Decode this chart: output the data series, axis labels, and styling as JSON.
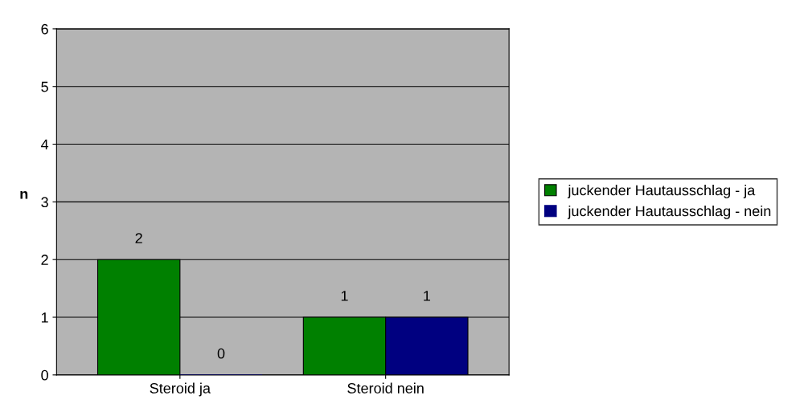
{
  "chart_data": {
    "type": "bar",
    "ylabel": "n",
    "categories": [
      "Steroid ja",
      "Steroid nein"
    ],
    "series": [
      {
        "name": "juckender Hautausschlag - ja",
        "color": "#008000",
        "values": [
          2,
          1
        ]
      },
      {
        "name": "juckender Hautausschlag - nein",
        "color": "#000080",
        "values": [
          0,
          1
        ]
      }
    ],
    "ylim": [
      0,
      6
    ],
    "yticks": [
      0,
      1,
      2,
      3,
      4,
      5,
      6
    ],
    "grid": "y",
    "legend": "right",
    "data_labels": true
  }
}
